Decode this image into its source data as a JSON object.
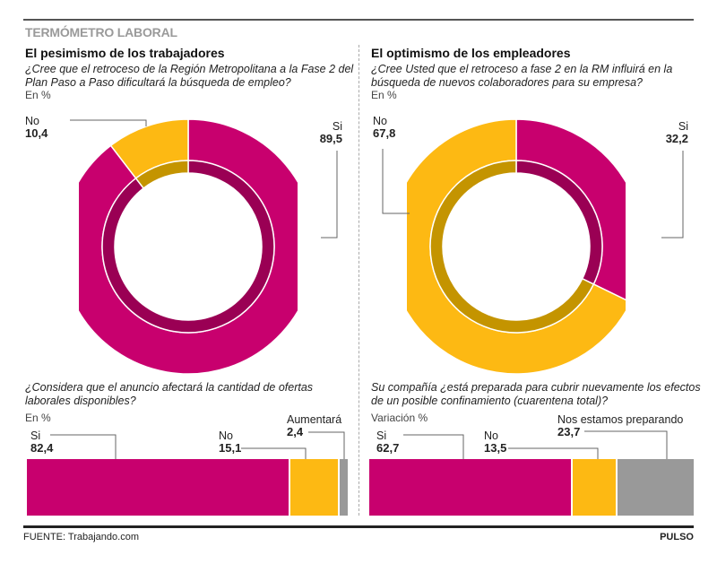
{
  "header": {
    "kicker": "TERMÓMETRO LABORAL"
  },
  "colors": {
    "magenta": "#c8006e",
    "magenta_dark": "#9a0054",
    "yellow": "#fdb913",
    "yellow_dark": "#c49400",
    "gray": "#999999"
  },
  "footer": {
    "source": "FUENTE: Trabajando.com",
    "brand": "PULSO"
  },
  "chart_data": [
    {
      "type": "pie",
      "title": "El pesimismo de los trabajadores",
      "subtitle": "¿Cree que el retroceso de la Región Metropolitana a la Fase 2 del Plan Paso a Paso dificultará la búsqueda de empleo?",
      "unit": "En %",
      "series": [
        {
          "name": "Si",
          "value": 89.5,
          "display": "89,5",
          "color": "#c8006e"
        },
        {
          "name": "No",
          "value": 10.4,
          "display": "10,4",
          "color": "#fdb913"
        }
      ]
    },
    {
      "type": "pie",
      "title": "El optimismo de los empleadores",
      "subtitle": "¿Cree Usted  que el retroceso a fase 2 en la RM influirá en la búsqueda de nuevos colaboradores para su empresa?",
      "unit": "En %",
      "series": [
        {
          "name": "Si",
          "value": 32.2,
          "display": "32,2",
          "color": "#c8006e"
        },
        {
          "name": "No",
          "value": 67.8,
          "display": "67,8",
          "color": "#fdb913"
        }
      ]
    },
    {
      "type": "bar",
      "stacked": true,
      "orientation": "horizontal",
      "subtitle": "¿Considera que el anuncio afectará la cantidad de ofertas laborales disponibles?",
      "unit": "En %",
      "series": [
        {
          "name": "Si",
          "value": 82.4,
          "display": "82,4",
          "color": "#c8006e"
        },
        {
          "name": "No",
          "value": 15.1,
          "display": "15,1",
          "color": "#fdb913"
        },
        {
          "name": "Aumentará",
          "value": 2.4,
          "display": "2,4",
          "color": "#999999"
        }
      ]
    },
    {
      "type": "bar",
      "stacked": true,
      "orientation": "horizontal",
      "subtitle": "Su compañía ¿está preparada para cubrir nuevamente los efectos de un posible confinamiento (cuarentena total)?",
      "unit": "Variación %",
      "series": [
        {
          "name": "Si",
          "value": 62.7,
          "display": "62,7",
          "color": "#c8006e"
        },
        {
          "name": "No",
          "value": 13.5,
          "display": "13,5",
          "color": "#fdb913"
        },
        {
          "name": "Nos estamos preparando",
          "value": 23.7,
          "display": "23,7",
          "color": "#999999"
        }
      ]
    }
  ]
}
